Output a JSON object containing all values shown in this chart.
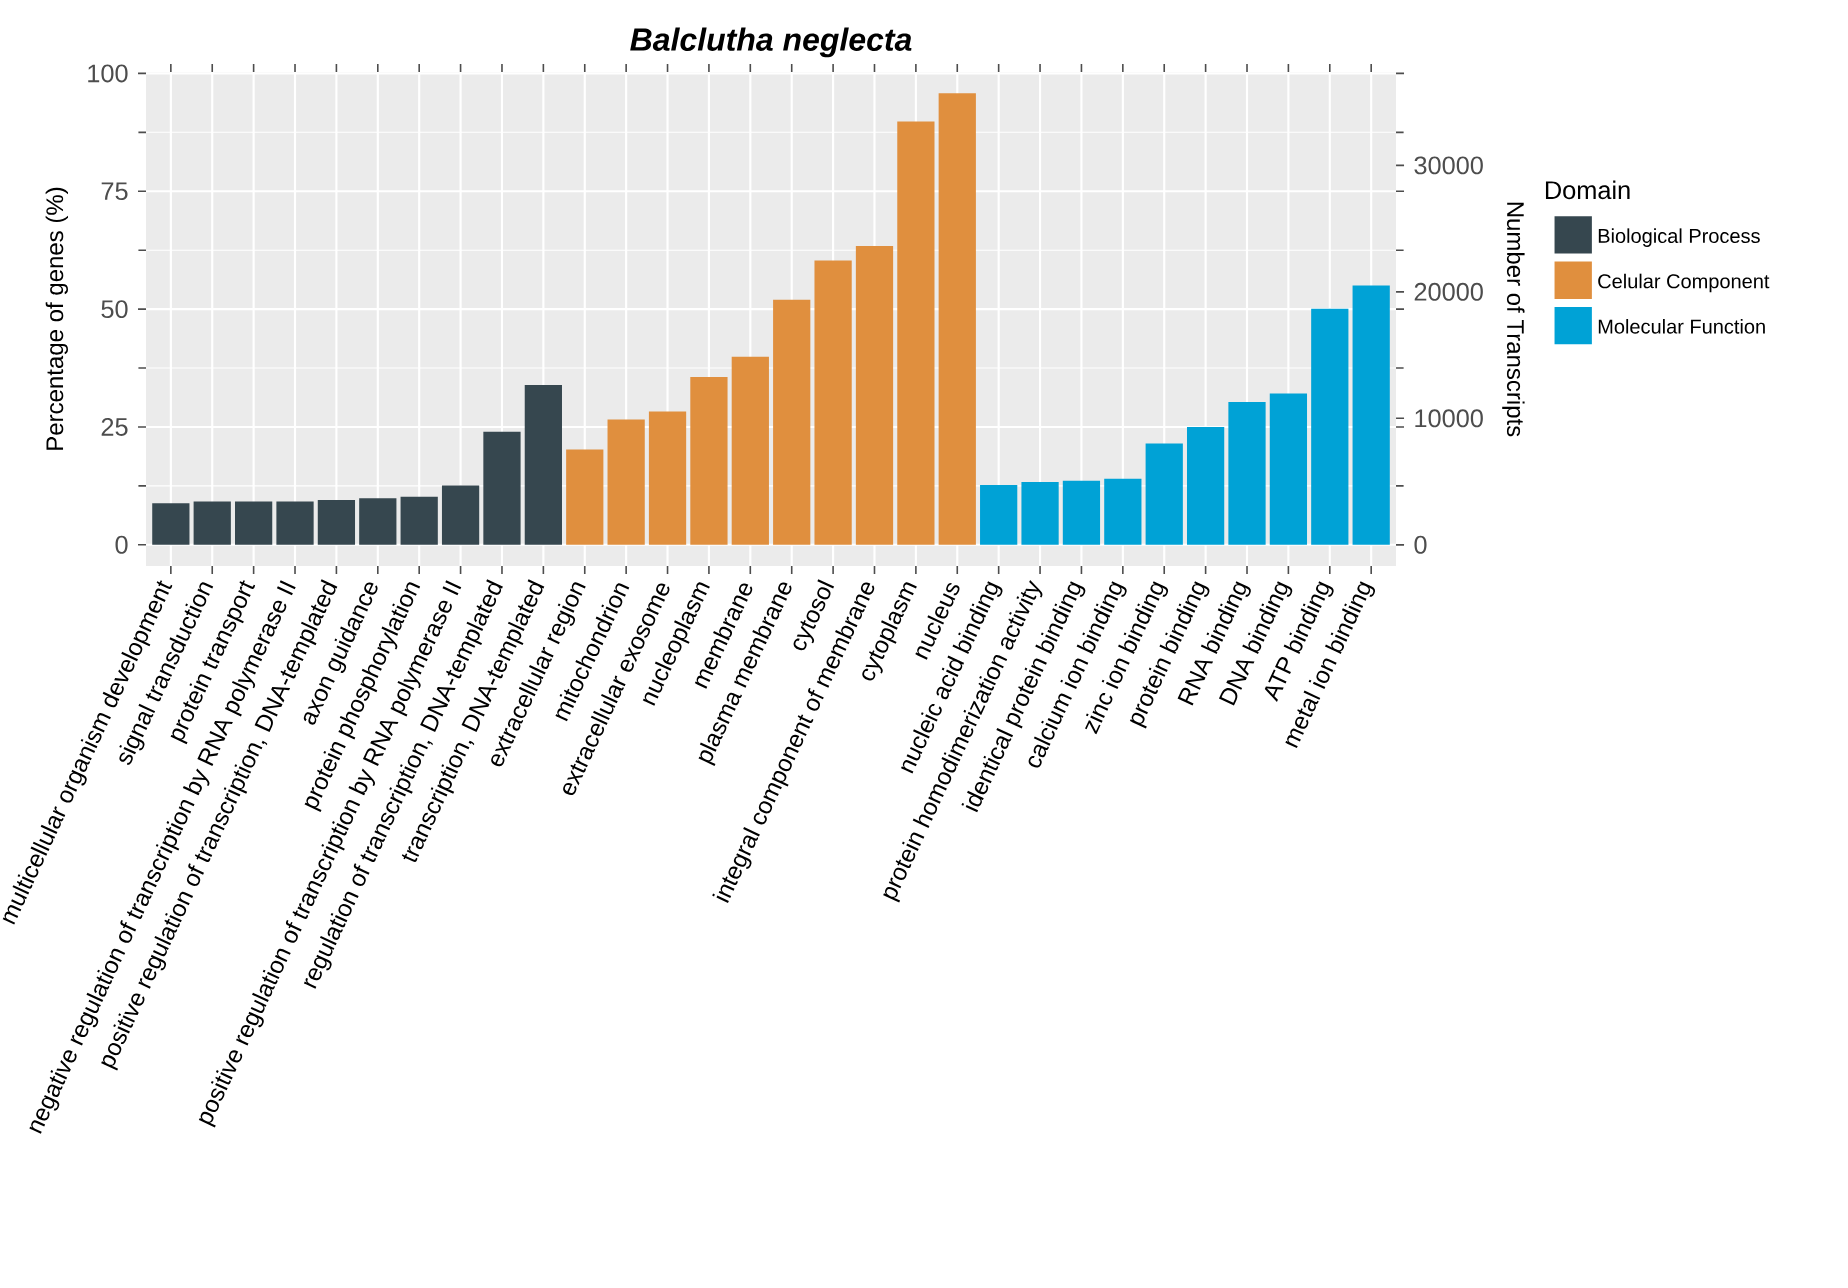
{
  "chart_data": {
    "type": "bar",
    "title": "Balclutha neglecta",
    "ylabel": "Percentage of genes (%)",
    "y2label": "Number of Transcripts",
    "legend_title": "Domain",
    "categories": [
      "multicellular organism development",
      "signal transduction",
      "protein transport",
      "negative regulation of transcription by RNA polymerase II",
      "positive regulation of transcription, DNA-templated",
      "axon guidance",
      "protein phosphorylation",
      "positive regulation of transcription by RNA polymerase II",
      "regulation of transcription, DNA-templated",
      "transcription, DNA-templated",
      "extracellular region",
      "mitochondrion",
      "extracellular exosome",
      "nucleoplasm",
      "membrane",
      "plasma membrane",
      "cytosol",
      "integral component of membrane",
      "cytoplasm",
      "nucleus",
      "nucleic acid binding",
      "protein homodimerization activity",
      "identical protein binding",
      "calcium ion binding",
      "zinc ion binding",
      "protein binding",
      "RNA binding",
      "DNA binding",
      "ATP binding",
      "metal ion binding"
    ],
    "series": [
      {
        "name": "Biological Process",
        "color": "#36474f",
        "values": [
          8.8,
          9.2,
          9.2,
          9.2,
          9.5,
          9.9,
          10.2,
          12.6,
          24.0,
          33.9,
          null,
          null,
          null,
          null,
          null,
          null,
          null,
          null,
          null,
          null,
          null,
          null,
          null,
          null,
          null,
          null,
          null,
          null,
          null,
          null
        ]
      },
      {
        "name": "Celular Component",
        "color": "#e08f3e",
        "values": [
          null,
          null,
          null,
          null,
          null,
          null,
          null,
          null,
          null,
          null,
          20.2,
          26.6,
          28.3,
          35.6,
          39.9,
          52.0,
          60.3,
          63.4,
          89.8,
          95.8,
          null,
          null,
          null,
          null,
          null,
          null,
          null,
          null,
          null,
          null
        ]
      },
      {
        "name": "Molecular Function",
        "color": "#00a2d6",
        "values": [
          null,
          null,
          null,
          null,
          null,
          null,
          null,
          null,
          null,
          null,
          null,
          null,
          null,
          null,
          null,
          null,
          null,
          null,
          null,
          null,
          12.7,
          13.3,
          13.6,
          14.0,
          21.5,
          25.0,
          30.3,
          32.1,
          50.1,
          55.0
        ]
      }
    ],
    "ylim": [
      -4.5,
      100.3
    ],
    "yticks": [
      0,
      25,
      50,
      75,
      100
    ],
    "y2lim": [
      -1677,
      37381
    ],
    "y2ticks": [
      0,
      10000,
      20000,
      30000
    ],
    "grid": true,
    "legend": "right"
  }
}
